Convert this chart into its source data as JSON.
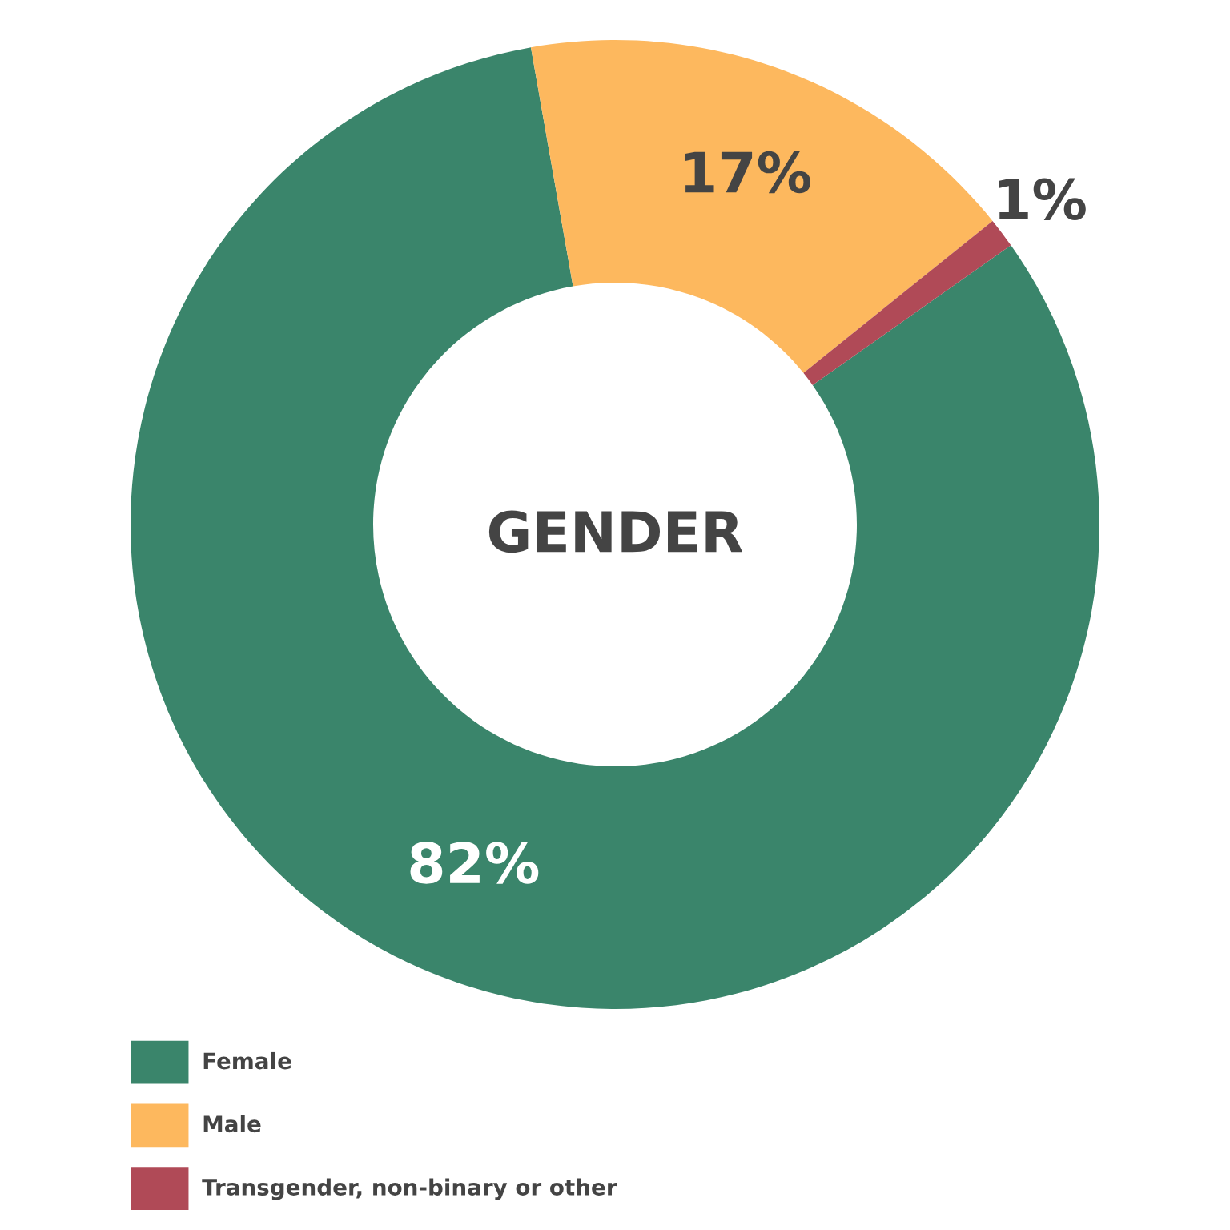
{
  "chart_data": {
    "type": "donut",
    "title": "GENDER",
    "categories": [
      "Female",
      "Male",
      "Transgender, non-binary or other"
    ],
    "values": [
      82,
      17,
      1
    ],
    "colors": [
      "#3a856b",
      "#fdb85e",
      "#b04a57"
    ],
    "value_labels": [
      "82%",
      "17%",
      "1%"
    ],
    "legend": "bottom left"
  }
}
